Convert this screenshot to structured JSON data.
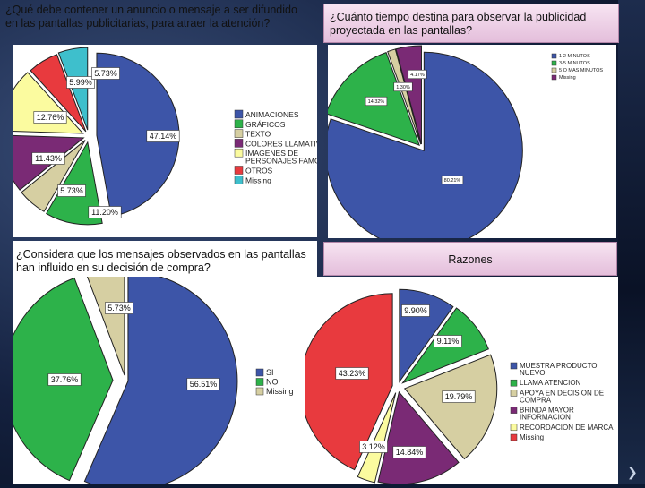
{
  "colors": {
    "blue": "#3d55a8",
    "green": "#2db24a",
    "tan": "#d6cfa2",
    "purple": "#7a2a75",
    "yellow": "#fbfb9f",
    "red": "#e83a3e",
    "cyan": "#3ebfcc"
  },
  "quadrants": {
    "q1": {
      "title": "¿Qué debe contener un anuncio o mensaje a ser difundido en las pantallas publicitarias, para atraer la atención?"
    },
    "q2": {
      "title": "¿Cuánto tiempo destina para observar la publicidad proyectada en las pantallas?"
    },
    "q3": {
      "title": "¿Considera que los mensajes observados en las pantallas han influido en su decisión de compra?"
    },
    "q4": {
      "title": "Razones"
    }
  },
  "chart_data": [
    {
      "id": "contenido",
      "type": "pie",
      "title": "¿Qué debe contener un anuncio o mensaje a ser difundido en las pantallas publicitarias, para atraer la atención?",
      "categories": [
        "ANIMACIONES",
        "GRÁFICOS",
        "TEXTO",
        "COLORES LLAMATIVOS",
        "IMÁGENES DE PERSONAJES FAMOSOS",
        "OTROS",
        "Missing"
      ],
      "legend": [
        "ANIMACIONES",
        "GRÁFICOS",
        "TEXTO",
        "COLORES LLAMATIVOS",
        "IMAGENES DE\nPERSONAJES FAMOSOS",
        "OTROS",
        "Missing"
      ],
      "values": [
        47.14,
        11.2,
        5.73,
        11.43,
        12.76,
        5.99,
        5.73
      ],
      "labels": [
        "47.14%",
        "11.20%",
        "5.73%",
        "11.43%",
        "12.76%",
        "5.99%",
        "5.73%"
      ],
      "colors": [
        "#3d55a8",
        "#2db24a",
        "#d6cfa2",
        "#7a2a75",
        "#fbfb9f",
        "#e83a3e",
        "#3ebfcc"
      ],
      "legend_position": "right"
    },
    {
      "id": "tiempo",
      "type": "pie",
      "title": "¿Cuánto tiempo destina para observar la publicidad proyectada en las pantallas?",
      "categories": [
        "1-2 MINUTOS",
        "3-5 MINUTOS",
        "5 O MÁS MINUTOS",
        "Missing"
      ],
      "legend": [
        "1-2 MINUTOS",
        "3-5 MINUTOS",
        "5 O MAS MINUTOS",
        "Missing"
      ],
      "values": [
        80.21,
        14.32,
        1.3,
        4.17
      ],
      "labels": [
        "80.21%",
        "14.32%",
        "1.30%",
        "4.17%"
      ],
      "colors": [
        "#3d55a8",
        "#2db24a",
        "#d6cfa2",
        "#7a2a75"
      ],
      "legend_position": "top-right"
    },
    {
      "id": "influencia",
      "type": "pie",
      "title": "¿Considera que los mensajes observados en las pantallas han influido en su decisión de compra?",
      "categories": [
        "SI",
        "NO",
        "Missing"
      ],
      "values": [
        56.51,
        37.76,
        5.73
      ],
      "labels": [
        "56.51%",
        "37.76%",
        "5.73%"
      ],
      "colors": [
        "#3d55a8",
        "#2db24a",
        "#d6cfa2"
      ],
      "legend_position": "right"
    },
    {
      "id": "razones",
      "type": "pie",
      "title": "Razones",
      "categories": [
        "MUESTRA PRODUCTO NUEVO",
        "LLAMA ATENCIÓN",
        "APOYA EN DECISIÓN DE COMPRA",
        "BRINDA MAYOR INFORMACIÓN",
        "RECORDACIÓN DE MARCA",
        "Missing"
      ],
      "legend": [
        "MUESTRA PRODUCTO\nNUEVO",
        "LLAMA ATENCION",
        "APOYA EN DECISION DE\nCOMPRA",
        "BRINDA MAYOR\nINFORMACION",
        "RECORDACION DE MARCA",
        "Missing"
      ],
      "values": [
        9.9,
        9.11,
        19.79,
        14.84,
        3.12,
        43.23
      ],
      "labels": [
        "9.90%",
        "9.11%",
        "19.79%",
        "14.84%",
        "3.12%",
        "43.23%"
      ],
      "colors": [
        "#3d55a8",
        "#2db24a",
        "#d6cfa2",
        "#7a2a75",
        "#fbfb9f",
        "#e83a3e"
      ],
      "legend_position": "right"
    }
  ]
}
